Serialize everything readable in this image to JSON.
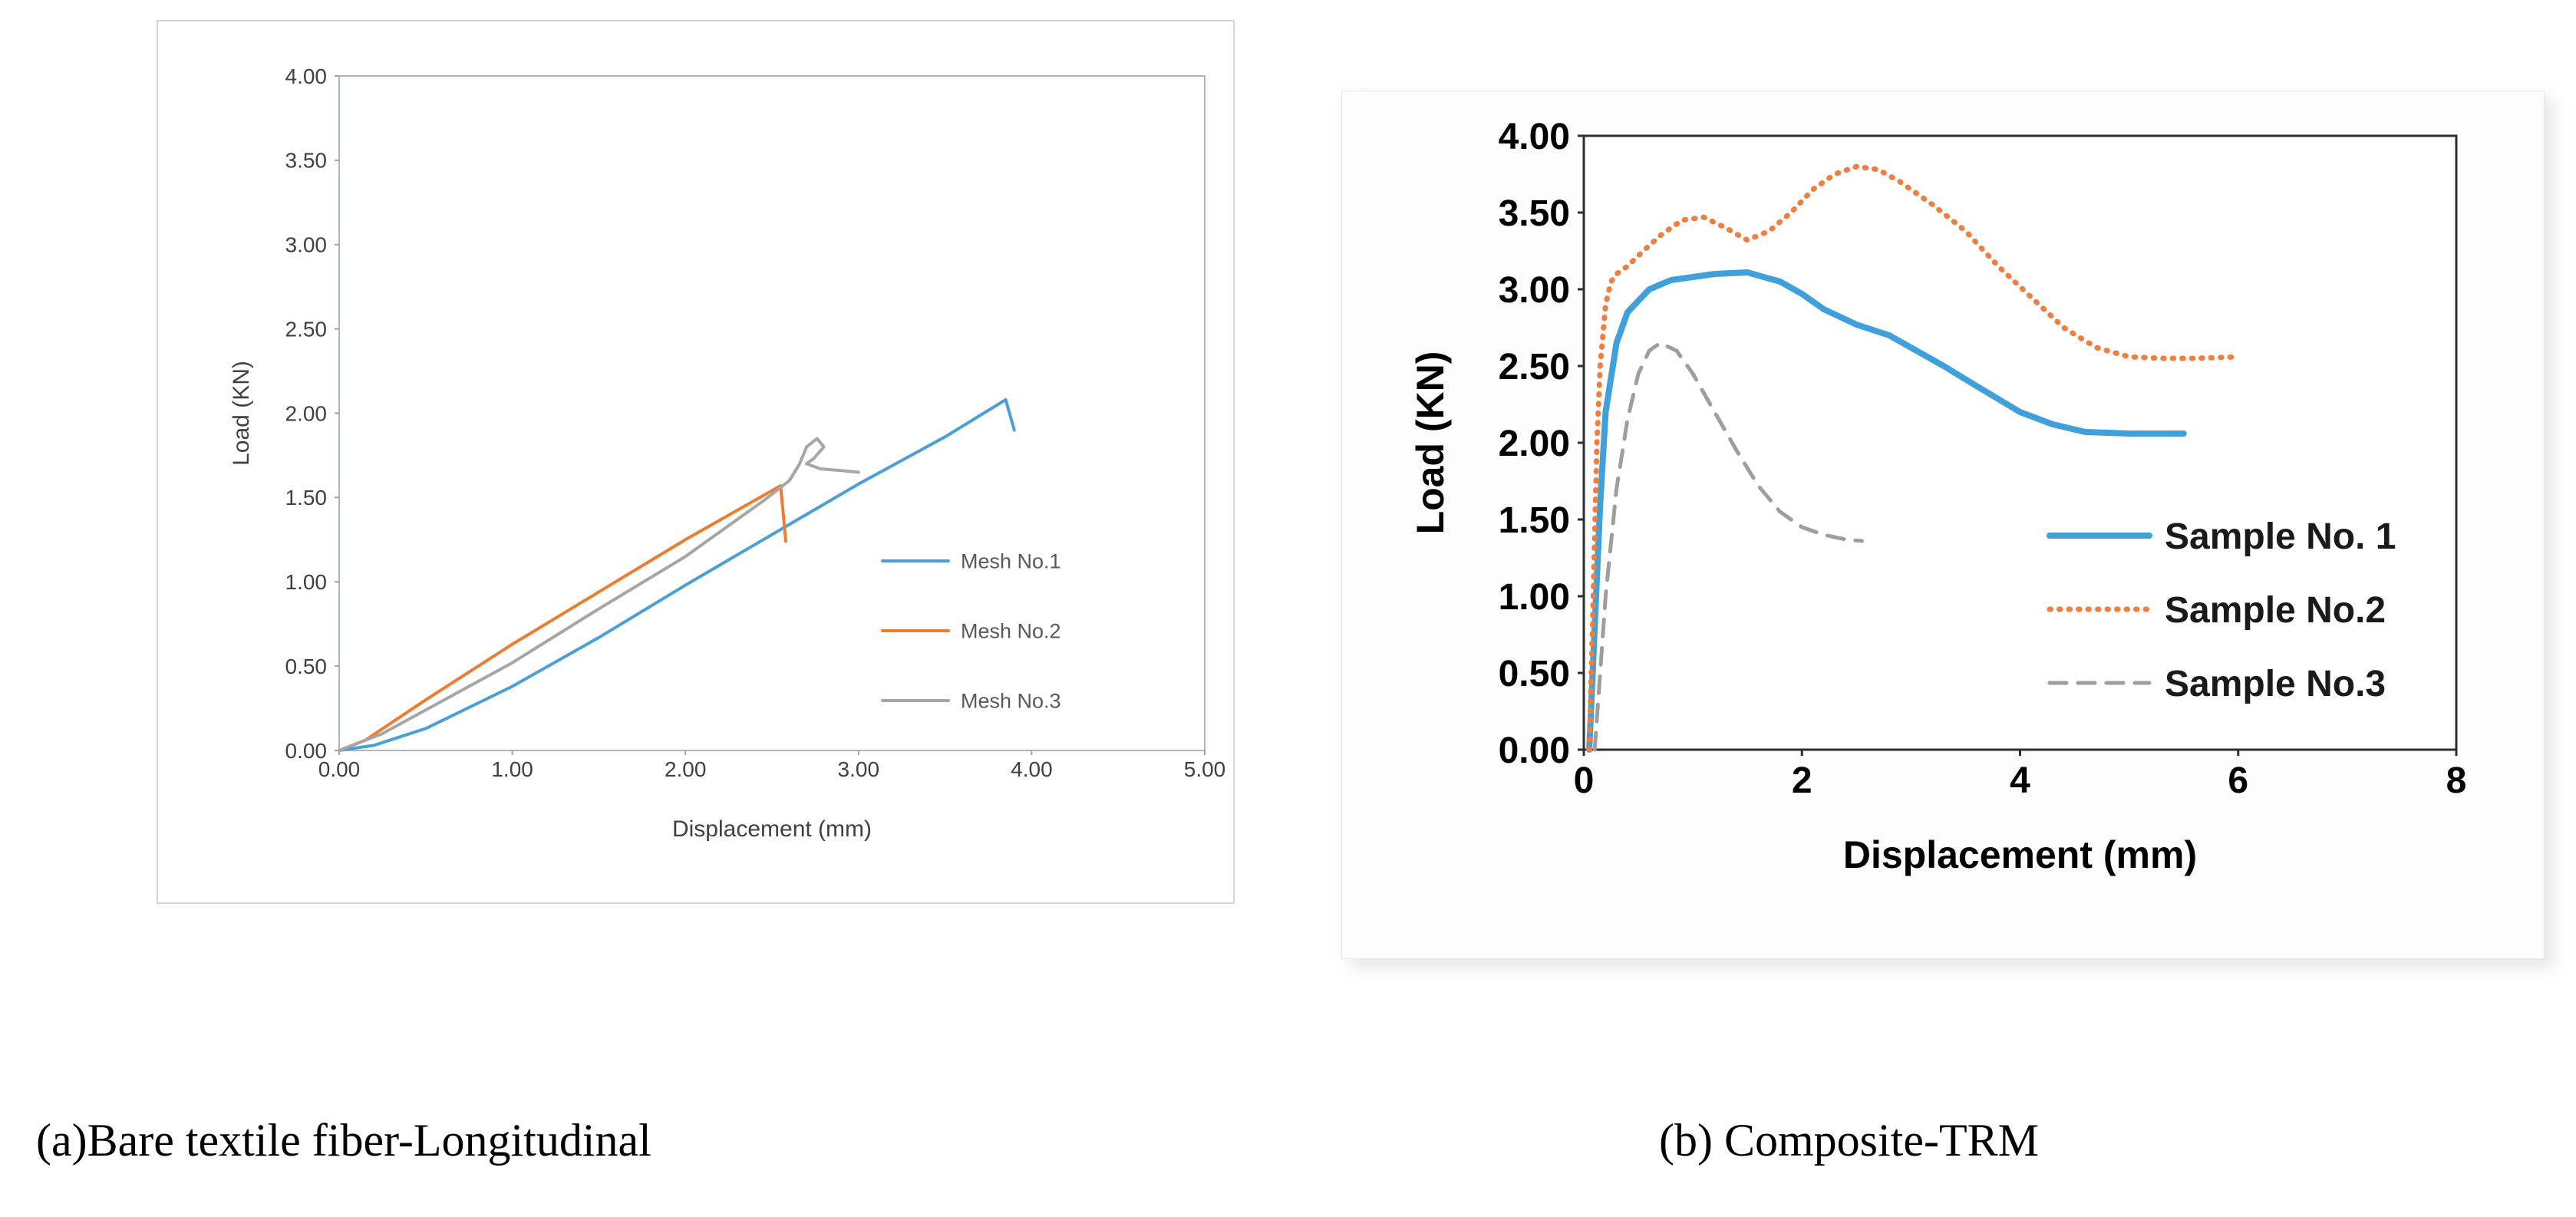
{
  "captions": {
    "a": "(a)Bare textile fiber-Longitudinal",
    "b": "(b) Composite-TRM"
  },
  "chart_data": [
    {
      "type": "line",
      "title": "",
      "xlabel": "Displacement (mm)",
      "ylabel": "Load (KN)",
      "xlim": [
        0,
        5
      ],
      "ylim": [
        0,
        4
      ],
      "xtick_labels": [
        "0.00",
        "1.00",
        "2.00",
        "3.00",
        "4.00",
        "5.00"
      ],
      "ytick_labels": [
        "0.00",
        "0.50",
        "1.00",
        "1.50",
        "2.00",
        "2.50",
        "3.00",
        "3.50",
        "4.00"
      ],
      "grid": false,
      "legend_position": "inside-right",
      "series": [
        {
          "name": "Mesh No.1",
          "color": "#4A9FD8",
          "dash": "solid",
          "points": [
            [
              0,
              0
            ],
            [
              0.2,
              0.03
            ],
            [
              0.5,
              0.13
            ],
            [
              0.8,
              0.28
            ],
            [
              1.0,
              0.38
            ],
            [
              1.5,
              0.67
            ],
            [
              2.0,
              0.98
            ],
            [
              2.5,
              1.28
            ],
            [
              3.0,
              1.58
            ],
            [
              3.5,
              1.86
            ],
            [
              3.85,
              2.08
            ],
            [
              3.9,
              1.9
            ]
          ]
        },
        {
          "name": "Mesh No.2",
          "color": "#ED7D31",
          "dash": "solid",
          "points": [
            [
              0,
              0
            ],
            [
              0.15,
              0.06
            ],
            [
              0.5,
              0.3
            ],
            [
              1.0,
              0.63
            ],
            [
              1.5,
              0.94
            ],
            [
              2.0,
              1.25
            ],
            [
              2.55,
              1.57
            ],
            [
              2.58,
              1.24
            ]
          ]
        },
        {
          "name": "Mesh No.3",
          "color": "#A6A6A6",
          "dash": "solid",
          "points": [
            [
              0,
              0
            ],
            [
              0.25,
              0.1
            ],
            [
              0.5,
              0.24
            ],
            [
              1.0,
              0.52
            ],
            [
              1.5,
              0.84
            ],
            [
              2.0,
              1.15
            ],
            [
              2.45,
              1.48
            ],
            [
              2.6,
              1.6
            ],
            [
              2.66,
              1.7
            ],
            [
              2.7,
              1.8
            ],
            [
              2.76,
              1.85
            ],
            [
              2.8,
              1.8
            ],
            [
              2.74,
              1.73
            ],
            [
              2.7,
              1.7
            ],
            [
              2.78,
              1.67
            ],
            [
              2.9,
              1.66
            ],
            [
              3.0,
              1.65
            ]
          ]
        }
      ]
    },
    {
      "type": "line",
      "title": "",
      "xlabel": "Displacement (mm)",
      "ylabel": "Load (KN)",
      "xlim": [
        0,
        8
      ],
      "ylim": [
        0,
        4
      ],
      "xtick_labels": [
        "0",
        "2",
        "4",
        "6",
        "8"
      ],
      "ytick_labels": [
        "0.00",
        "0.50",
        "1.00",
        "1.50",
        "2.00",
        "2.50",
        "3.00",
        "3.50",
        "4.00"
      ],
      "grid": false,
      "legend_position": "inside-right",
      "series": [
        {
          "name": "Sample No. 1",
          "color": "#3FA0DC",
          "dash": "solid",
          "points": [
            [
              0.05,
              0
            ],
            [
              0.1,
              0.8
            ],
            [
              0.15,
              1.6
            ],
            [
              0.2,
              2.2
            ],
            [
              0.3,
              2.65
            ],
            [
              0.4,
              2.85
            ],
            [
              0.6,
              3.0
            ],
            [
              0.8,
              3.06
            ],
            [
              1.2,
              3.1
            ],
            [
              1.5,
              3.11
            ],
            [
              1.8,
              3.05
            ],
            [
              2.0,
              2.97
            ],
            [
              2.2,
              2.87
            ],
            [
              2.5,
              2.77
            ],
            [
              2.8,
              2.7
            ],
            [
              3.0,
              2.62
            ],
            [
              3.3,
              2.5
            ],
            [
              3.6,
              2.37
            ],
            [
              4.0,
              2.2
            ],
            [
              4.3,
              2.12
            ],
            [
              4.6,
              2.07
            ],
            [
              5.0,
              2.06
            ],
            [
              5.5,
              2.06
            ]
          ]
        },
        {
          "name": "Sample No.2",
          "color": "#F07E3E",
          "dash": "dotted",
          "points": [
            [
              0.05,
              0
            ],
            [
              0.08,
              0.8
            ],
            [
              0.1,
              1.4
            ],
            [
              0.12,
              2.0
            ],
            [
              0.15,
              2.5
            ],
            [
              0.2,
              2.9
            ],
            [
              0.25,
              3.05
            ],
            [
              0.3,
              3.1
            ],
            [
              0.4,
              3.15
            ],
            [
              0.5,
              3.22
            ],
            [
              0.7,
              3.35
            ],
            [
              0.9,
              3.45
            ],
            [
              1.1,
              3.47
            ],
            [
              1.3,
              3.4
            ],
            [
              1.5,
              3.32
            ],
            [
              1.7,
              3.38
            ],
            [
              1.9,
              3.5
            ],
            [
              2.1,
              3.65
            ],
            [
              2.3,
              3.75
            ],
            [
              2.5,
              3.8
            ],
            [
              2.7,
              3.78
            ],
            [
              2.9,
              3.7
            ],
            [
              3.2,
              3.55
            ],
            [
              3.5,
              3.38
            ],
            [
              3.8,
              3.15
            ],
            [
              4.1,
              2.95
            ],
            [
              4.4,
              2.75
            ],
            [
              4.7,
              2.62
            ],
            [
              5.0,
              2.56
            ],
            [
              5.3,
              2.55
            ],
            [
              5.6,
              2.55
            ],
            [
              6.0,
              2.56
            ]
          ]
        },
        {
          "name": "Sample No.3",
          "color": "#9E9E9E",
          "dash": "dashed",
          "points": [
            [
              0.1,
              0
            ],
            [
              0.15,
              0.5
            ],
            [
              0.2,
              1.0
            ],
            [
              0.3,
              1.7
            ],
            [
              0.4,
              2.15
            ],
            [
              0.5,
              2.45
            ],
            [
              0.6,
              2.6
            ],
            [
              0.7,
              2.65
            ],
            [
              0.85,
              2.6
            ],
            [
              1.0,
              2.45
            ],
            [
              1.2,
              2.2
            ],
            [
              1.4,
              1.95
            ],
            [
              1.6,
              1.72
            ],
            [
              1.8,
              1.55
            ],
            [
              2.0,
              1.45
            ],
            [
              2.2,
              1.4
            ],
            [
              2.4,
              1.37
            ],
            [
              2.55,
              1.36
            ]
          ]
        }
      ]
    }
  ]
}
